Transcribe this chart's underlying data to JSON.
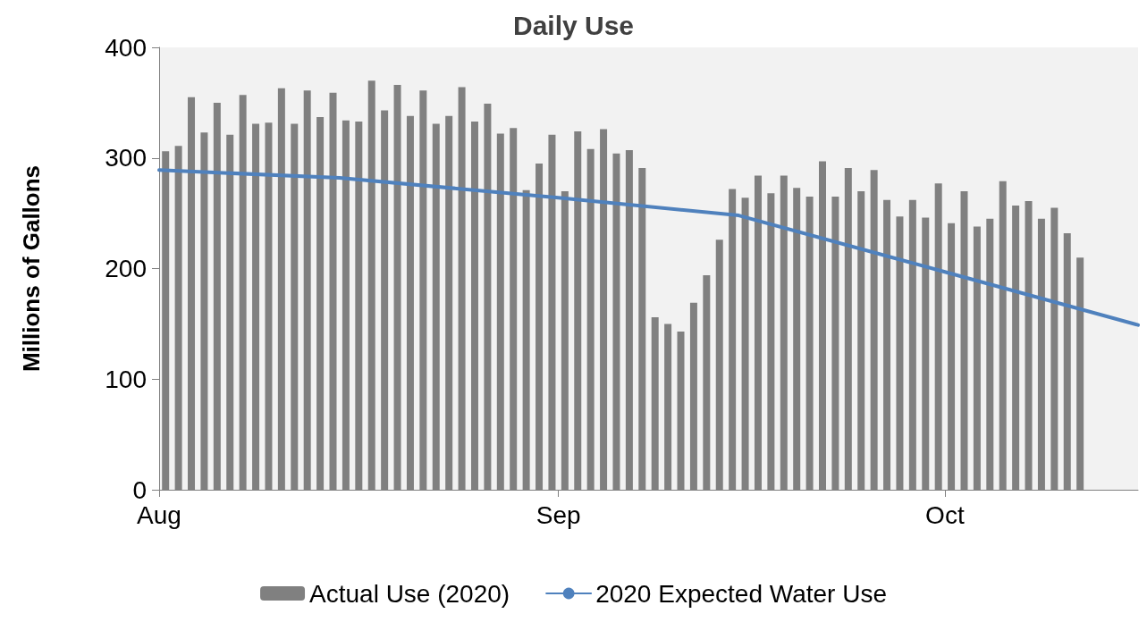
{
  "chart_data": {
    "type": "bar",
    "title": "Daily Use",
    "ylabel": "Millions of Gallons",
    "x": [
      "2020-08-01T12:00",
      "2020-08-02T12:00",
      "2020-08-03T12:00",
      "2020-08-04T12:00",
      "2020-08-05T12:00",
      "2020-08-06T12:00",
      "2020-08-07T12:00",
      "2020-08-08T12:00",
      "2020-08-09T12:00",
      "2020-08-10T12:00",
      "2020-08-11T12:00",
      "2020-08-12T12:00",
      "2020-08-13T12:00",
      "2020-08-14T12:00",
      "2020-08-15T12:00",
      "2020-08-16T12:00",
      "2020-08-17T12:00",
      "2020-08-18T12:00",
      "2020-08-19T12:00",
      "2020-08-20T12:00",
      "2020-08-21T12:00",
      "2020-08-22T12:00",
      "2020-08-23T12:00",
      "2020-08-24T12:00",
      "2020-08-25T12:00",
      "2020-08-26T12:00",
      "2020-08-27T12:00",
      "2020-08-28T12:00",
      "2020-08-29T12:00",
      "2020-08-30T12:00",
      "2020-08-31T12:00",
      "2020-09-01T12:00",
      "2020-09-02T12:00",
      "2020-09-03T12:00",
      "2020-09-04T12:00",
      "2020-09-05T12:00",
      "2020-09-06T12:00",
      "2020-09-07T12:00",
      "2020-09-08T12:00",
      "2020-09-09T12:00",
      "2020-09-10T12:00",
      "2020-09-11T12:00",
      "2020-09-12T12:00",
      "2020-09-13T12:00",
      "2020-09-14T12:00",
      "2020-09-15T12:00",
      "2020-09-16T12:00",
      "2020-09-17T12:00",
      "2020-09-18T12:00",
      "2020-09-19T12:00",
      "2020-09-20T12:00",
      "2020-09-21T12:00",
      "2020-09-22T12:00",
      "2020-09-23T12:00",
      "2020-09-24T12:00",
      "2020-09-25T12:00",
      "2020-09-26T12:00",
      "2020-09-27T12:00",
      "2020-09-28T12:00",
      "2020-09-29T12:00",
      "2020-09-30T12:00",
      "2020-10-01T12:00",
      "2020-10-02T12:00",
      "2020-10-03T12:00",
      "2020-10-04T12:00",
      "2020-10-05T12:00",
      "2020-10-06T12:00",
      "2020-10-07T12:00",
      "2020-10-08T12:00",
      "2020-10-09T12:00",
      "2020-10-10T12:00",
      "2020-10-11T12:00"
    ],
    "series": [
      {
        "name": "Actual Use (2020)",
        "color": "#808080",
        "values": [
          306,
          311,
          355,
          323,
          350,
          321,
          357,
          331,
          332,
          363,
          331,
          361,
          337,
          359,
          334,
          333,
          370,
          343,
          366,
          338,
          361,
          331,
          338,
          364,
          333,
          349,
          322,
          327,
          271,
          295,
          321,
          270,
          324,
          308,
          326,
          304,
          307,
          291,
          156,
          150,
          143,
          169,
          194,
          226,
          272,
          264,
          284,
          268,
          284,
          273,
          265,
          297,
          265,
          291,
          270,
          289,
          262,
          247,
          262,
          246,
          277,
          241,
          270,
          238,
          245,
          279,
          257,
          261,
          245,
          255,
          232,
          210
        ]
      },
      {
        "name": "2020 Expected Water Use",
        "type": "line",
        "color": "#4f81bd",
        "x": [
          "2020-08-01",
          "2020-08-15",
          "2020-09-01",
          "2020-09-15",
          "2020-10-01",
          "2020-10-16"
        ],
        "values": [
          289,
          282,
          264,
          248,
          197,
          149
        ]
      }
    ],
    "xlim": [
      "2020-08-01",
      "2020-10-16"
    ],
    "xticks": [
      {
        "value": "2020-08-01",
        "label": "Aug"
      },
      {
        "value": "2020-09-01",
        "label": "Sep"
      },
      {
        "value": "2020-10-01",
        "label": "Oct"
      }
    ],
    "ylim": [
      0,
      400
    ],
    "yticks": [
      0,
      100,
      200,
      300,
      400
    ],
    "grid": false,
    "legend": "bottom",
    "marker": "none",
    "line_style": "solid"
  }
}
